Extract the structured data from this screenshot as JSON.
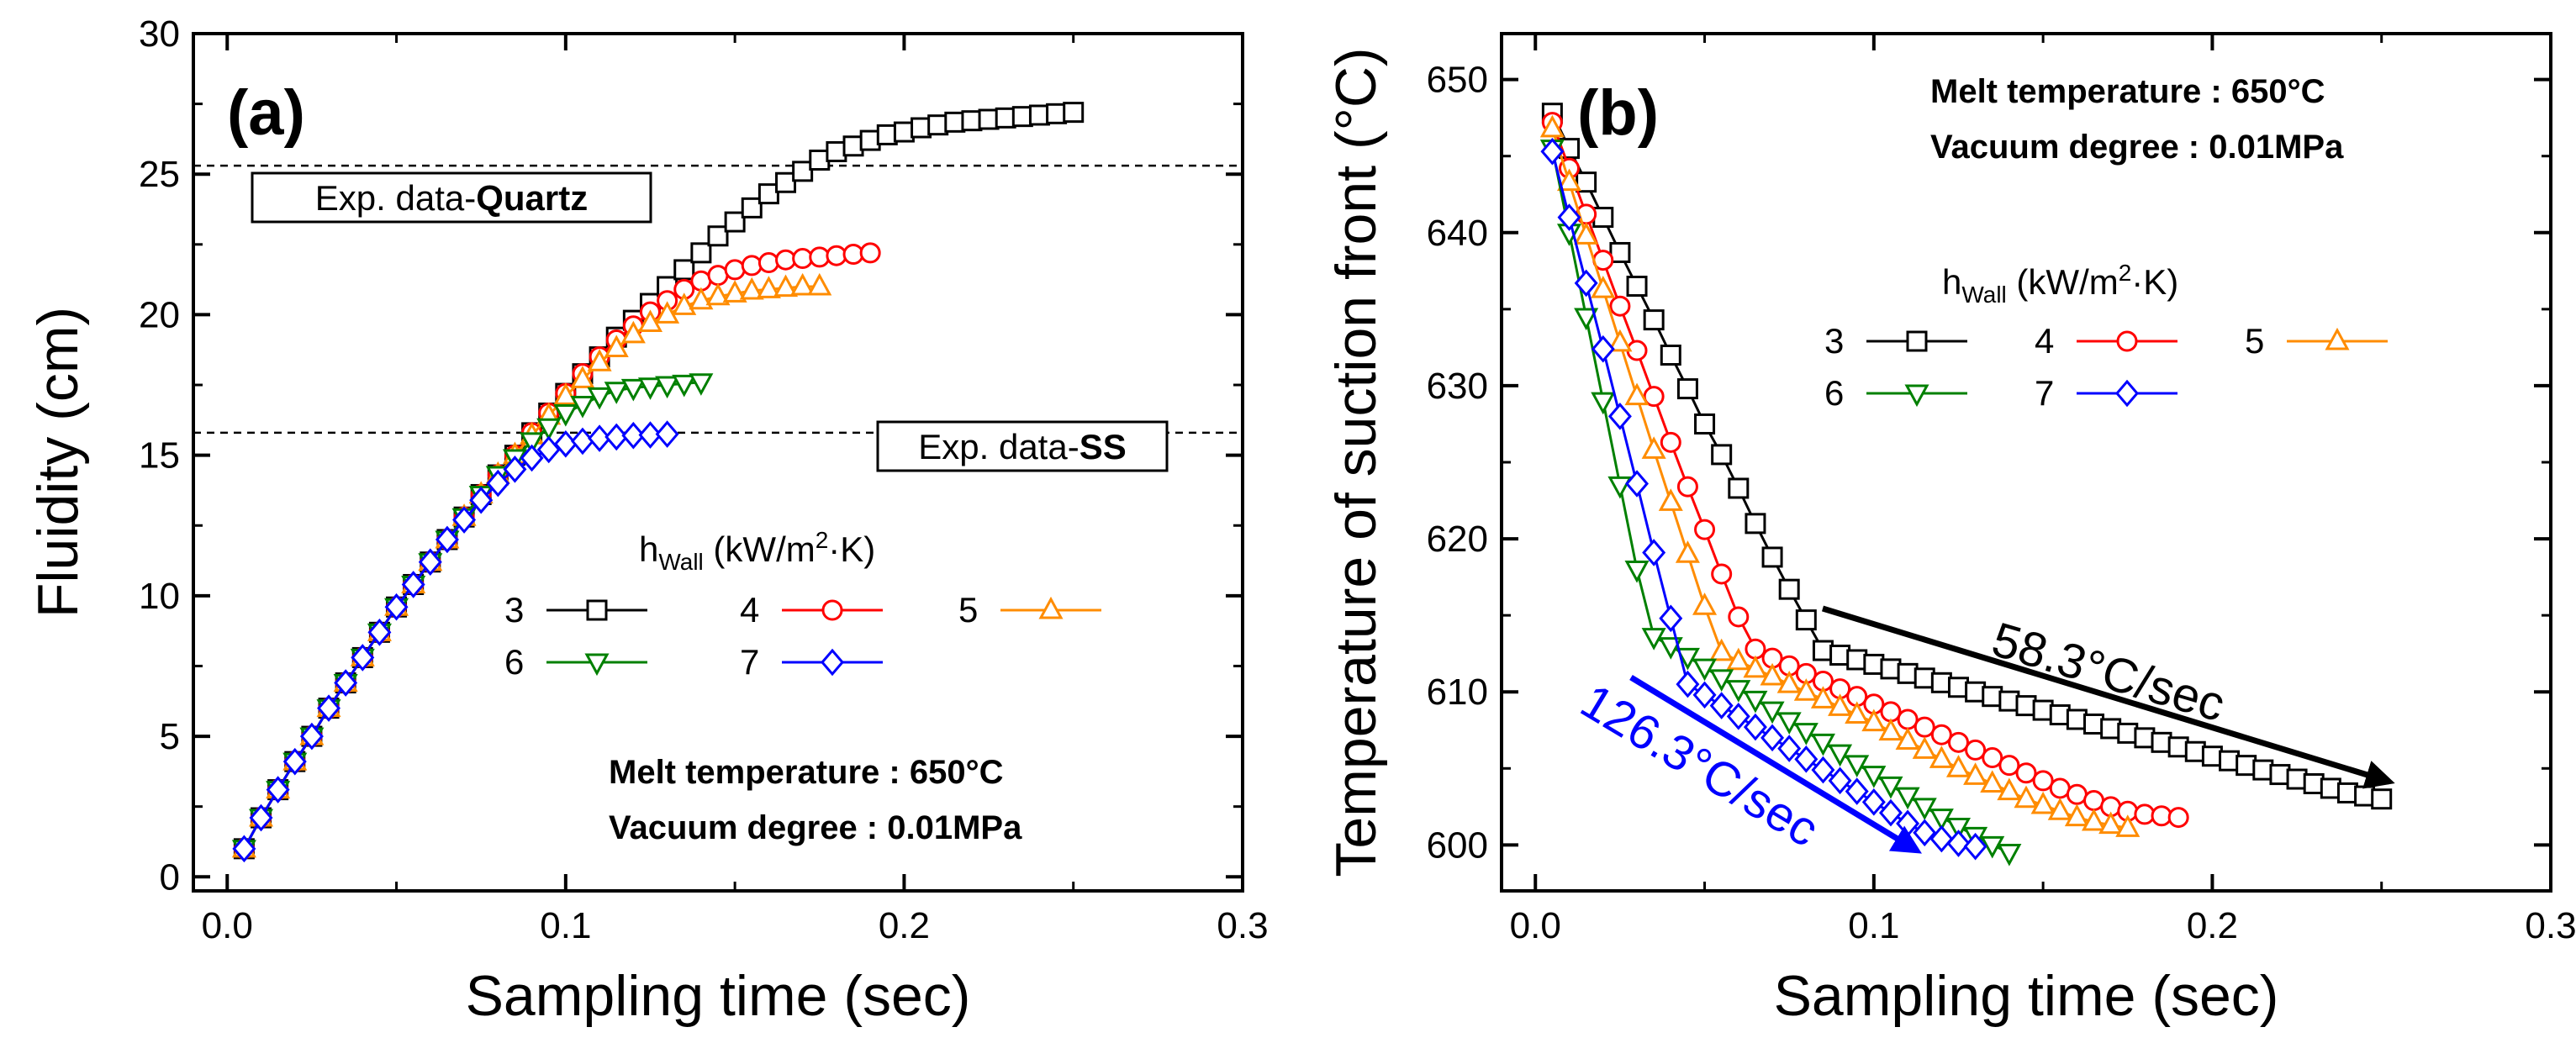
{
  "chart_data": [
    {
      "type": "line",
      "panel_label": "(a)",
      "xlabel": "Sampling time (sec)",
      "ylabel": "Fluidity (cm)",
      "xlim": [
        -0.01,
        0.3
      ],
      "ylim": [
        -0.5,
        30
      ],
      "xticks": [
        0.0,
        0.1,
        0.2,
        0.3
      ],
      "xtick_labels": [
        "0.0",
        "0.1",
        "0.2",
        "0.3"
      ],
      "yticks": [
        0,
        5,
        10,
        15,
        20,
        25,
        30
      ],
      "ytick_labels": [
        "0",
        "5",
        "10",
        "15",
        "20",
        "25",
        "30"
      ],
      "annotations": {
        "line1": "Melt temperature : 650°C",
        "line2": "Vacuum degree : 0.01MPa"
      },
      "reference_lines": [
        {
          "value": 25.3,
          "label_prefix": "Exp. data-",
          "label_bold": "Quartz"
        },
        {
          "value": 15.8,
          "label_prefix": "Exp. data-",
          "label_bold": "SS"
        }
      ],
      "legend": {
        "title": "h",
        "title_sub": "Wall",
        "title_unit_a": " (kW/m",
        "title_sup": "2",
        "title_unit_b": "·K)"
      },
      "series": [
        {
          "name": "3",
          "color": "#000000",
          "marker": "square",
          "x": [
            0.005,
            0.01,
            0.015,
            0.02,
            0.025,
            0.03,
            0.035,
            0.04,
            0.045,
            0.05,
            0.055,
            0.06,
            0.065,
            0.07,
            0.075,
            0.08,
            0.085,
            0.09,
            0.095,
            0.1,
            0.105,
            0.11,
            0.115,
            0.12,
            0.125,
            0.13,
            0.135,
            0.14,
            0.145,
            0.15,
            0.155,
            0.16,
            0.165,
            0.17,
            0.175,
            0.18,
            0.185,
            0.19,
            0.195,
            0.2,
            0.205,
            0.21,
            0.215,
            0.22,
            0.225,
            0.23,
            0.235,
            0.24,
            0.245,
            0.25
          ],
          "y": [
            1.0,
            2.1,
            3.1,
            4.1,
            5.0,
            6.0,
            6.9,
            7.8,
            8.7,
            9.6,
            10.4,
            11.2,
            12.0,
            12.8,
            13.6,
            14.3,
            15.0,
            15.8,
            16.5,
            17.2,
            17.9,
            18.5,
            19.2,
            19.8,
            20.4,
            21.0,
            21.6,
            22.2,
            22.8,
            23.3,
            23.8,
            24.3,
            24.7,
            25.1,
            25.5,
            25.8,
            26.0,
            26.2,
            26.4,
            26.5,
            26.65,
            26.75,
            26.85,
            26.9,
            26.95,
            27.0,
            27.05,
            27.1,
            27.15,
            27.2
          ]
        },
        {
          "name": "4",
          "color": "#ff0000",
          "marker": "circle",
          "x": [
            0.005,
            0.01,
            0.015,
            0.02,
            0.025,
            0.03,
            0.035,
            0.04,
            0.045,
            0.05,
            0.055,
            0.06,
            0.065,
            0.07,
            0.075,
            0.08,
            0.085,
            0.09,
            0.095,
            0.1,
            0.105,
            0.11,
            0.115,
            0.12,
            0.125,
            0.13,
            0.135,
            0.14,
            0.145,
            0.15,
            0.155,
            0.16,
            0.165,
            0.17,
            0.175,
            0.18,
            0.185,
            0.19
          ],
          "y": [
            1.0,
            2.1,
            3.1,
            4.1,
            5.0,
            6.0,
            6.9,
            7.8,
            8.7,
            9.6,
            10.4,
            11.2,
            12.0,
            12.8,
            13.6,
            14.3,
            15.0,
            15.8,
            16.5,
            17.2,
            17.9,
            18.5,
            19.1,
            19.6,
            20.1,
            20.5,
            20.9,
            21.2,
            21.4,
            21.6,
            21.75,
            21.85,
            21.95,
            22.0,
            22.05,
            22.1,
            22.15,
            22.2
          ]
        },
        {
          "name": "5",
          "color": "#ff8c00",
          "marker": "triangle-up",
          "x": [
            0.005,
            0.01,
            0.015,
            0.02,
            0.025,
            0.03,
            0.035,
            0.04,
            0.045,
            0.05,
            0.055,
            0.06,
            0.065,
            0.07,
            0.075,
            0.08,
            0.085,
            0.09,
            0.095,
            0.1,
            0.105,
            0.11,
            0.115,
            0.12,
            0.125,
            0.13,
            0.135,
            0.14,
            0.145,
            0.15,
            0.155,
            0.16,
            0.165,
            0.17,
            0.175
          ],
          "y": [
            1.0,
            2.1,
            3.1,
            4.1,
            5.0,
            6.0,
            6.9,
            7.8,
            8.7,
            9.6,
            10.4,
            11.2,
            12.0,
            12.8,
            13.6,
            14.3,
            15.0,
            15.7,
            16.4,
            17.1,
            17.7,
            18.3,
            18.8,
            19.3,
            19.7,
            20.0,
            20.3,
            20.5,
            20.65,
            20.75,
            20.85,
            20.9,
            20.95,
            21.0,
            21.0
          ]
        },
        {
          "name": "6",
          "color": "#008000",
          "marker": "triangle-down",
          "x": [
            0.005,
            0.01,
            0.015,
            0.02,
            0.025,
            0.03,
            0.035,
            0.04,
            0.045,
            0.05,
            0.055,
            0.06,
            0.065,
            0.07,
            0.075,
            0.08,
            0.085,
            0.09,
            0.095,
            0.1,
            0.105,
            0.11,
            0.115,
            0.12,
            0.125,
            0.13,
            0.135,
            0.14
          ],
          "y": [
            1.0,
            2.1,
            3.1,
            4.1,
            5.0,
            6.0,
            6.9,
            7.8,
            8.7,
            9.6,
            10.4,
            11.2,
            12.0,
            12.8,
            13.6,
            14.3,
            14.9,
            15.5,
            16.0,
            16.5,
            16.8,
            17.1,
            17.3,
            17.4,
            17.45,
            17.5,
            17.55,
            17.6
          ]
        },
        {
          "name": "7",
          "color": "#0000ff",
          "marker": "diamond",
          "x": [
            0.005,
            0.01,
            0.015,
            0.02,
            0.025,
            0.03,
            0.035,
            0.04,
            0.045,
            0.05,
            0.055,
            0.06,
            0.065,
            0.07,
            0.075,
            0.08,
            0.085,
            0.09,
            0.095,
            0.1,
            0.105,
            0.11,
            0.115,
            0.12,
            0.125,
            0.13
          ],
          "y": [
            1.0,
            2.1,
            3.1,
            4.1,
            5.0,
            6.0,
            6.9,
            7.8,
            8.7,
            9.6,
            10.4,
            11.2,
            12.0,
            12.7,
            13.4,
            14.0,
            14.5,
            14.9,
            15.2,
            15.4,
            15.5,
            15.6,
            15.65,
            15.7,
            15.72,
            15.75
          ]
        }
      ]
    },
    {
      "type": "line",
      "panel_label": "(b)",
      "xlabel": "Sampling time (sec)",
      "ylabel": "Temperature of suction front (°C)",
      "xlim": [
        -0.01,
        0.3
      ],
      "ylim": [
        597,
        653
      ],
      "xticks": [
        0.0,
        0.1,
        0.2,
        0.3
      ],
      "xtick_labels": [
        "0.0",
        "0.1",
        "0.2",
        "0.3"
      ],
      "yticks": [
        600,
        610,
        620,
        630,
        640,
        650
      ],
      "ytick_labels": [
        "600",
        "610",
        "620",
        "630",
        "640",
        "650"
      ],
      "annotations": {
        "line1": "Melt temperature : 650°C",
        "line2": "Vacuum degree : 0.01MPa"
      },
      "rates": [
        {
          "label": "58.3°C/sec",
          "color": "#000000"
        },
        {
          "label": "126.3°C/sec",
          "color": "#0000ff"
        }
      ],
      "legend": {
        "title": "h",
        "title_sub": "Wall",
        "title_unit_a": " (kW/m",
        "title_sup": "2",
        "title_unit_b": "·K)"
      },
      "series": [
        {
          "name": "3",
          "color": "#000000",
          "marker": "square",
          "x": [
            0.005,
            0.01,
            0.015,
            0.02,
            0.025,
            0.03,
            0.035,
            0.04,
            0.045,
            0.05,
            0.055,
            0.06,
            0.065,
            0.07,
            0.075,
            0.08,
            0.085,
            0.09,
            0.095,
            0.1,
            0.105,
            0.11,
            0.115,
            0.12,
            0.125,
            0.13,
            0.135,
            0.14,
            0.145,
            0.15,
            0.155,
            0.16,
            0.165,
            0.17,
            0.175,
            0.18,
            0.185,
            0.19,
            0.195,
            0.2,
            0.205,
            0.21,
            0.215,
            0.22,
            0.225,
            0.23,
            0.235,
            0.24,
            0.245,
            0.25
          ],
          "y": [
            647.8,
            645.5,
            643.3,
            641.0,
            638.7,
            636.5,
            634.3,
            632.0,
            629.8,
            627.5,
            625.5,
            623.3,
            621.0,
            618.8,
            616.7,
            614.7,
            612.7,
            612.4,
            612.1,
            611.8,
            611.5,
            611.2,
            610.9,
            610.6,
            610.3,
            610.0,
            609.7,
            609.4,
            609.1,
            608.8,
            608.5,
            608.2,
            607.9,
            607.6,
            607.3,
            607.0,
            606.7,
            606.4,
            606.1,
            605.8,
            605.5,
            605.2,
            604.9,
            604.6,
            604.3,
            604.0,
            603.7,
            603.4,
            603.2,
            603.0
          ]
        },
        {
          "name": "4",
          "color": "#ff0000",
          "marker": "circle",
          "x": [
            0.005,
            0.01,
            0.015,
            0.02,
            0.025,
            0.03,
            0.035,
            0.04,
            0.045,
            0.05,
            0.055,
            0.06,
            0.065,
            0.07,
            0.075,
            0.08,
            0.085,
            0.09,
            0.095,
            0.1,
            0.105,
            0.11,
            0.115,
            0.12,
            0.125,
            0.13,
            0.135,
            0.14,
            0.145,
            0.15,
            0.155,
            0.16,
            0.165,
            0.17,
            0.175,
            0.18,
            0.185,
            0.19
          ],
          "y": [
            647.2,
            644.2,
            641.2,
            638.2,
            635.2,
            632.3,
            629.3,
            626.3,
            623.4,
            620.6,
            617.7,
            614.9,
            612.8,
            612.2,
            611.7,
            611.2,
            610.7,
            610.2,
            609.7,
            609.2,
            608.7,
            608.2,
            607.7,
            607.2,
            606.7,
            606.2,
            605.7,
            605.2,
            604.7,
            604.2,
            603.7,
            603.3,
            602.9,
            602.5,
            602.2,
            602.0,
            601.9,
            601.8
          ]
        },
        {
          "name": "5",
          "color": "#ff8c00",
          "marker": "triangle-up",
          "x": [
            0.005,
            0.01,
            0.015,
            0.02,
            0.025,
            0.03,
            0.035,
            0.04,
            0.045,
            0.05,
            0.055,
            0.06,
            0.065,
            0.07,
            0.075,
            0.08,
            0.085,
            0.09,
            0.095,
            0.1,
            0.105,
            0.11,
            0.115,
            0.12,
            0.125,
            0.13,
            0.135,
            0.14,
            0.145,
            0.15,
            0.155,
            0.16,
            0.165,
            0.17,
            0.175
          ],
          "y": [
            646.8,
            643.3,
            639.8,
            636.3,
            632.8,
            629.3,
            625.8,
            622.4,
            619.0,
            615.6,
            612.6,
            612.0,
            611.5,
            611.0,
            610.5,
            610.0,
            609.5,
            609.0,
            608.5,
            608.0,
            607.4,
            606.8,
            606.2,
            605.6,
            605.0,
            604.5,
            604.0,
            603.5,
            603.0,
            602.6,
            602.2,
            601.8,
            601.5,
            601.3,
            601.1
          ]
        },
        {
          "name": "6",
          "color": "#008000",
          "marker": "triangle-down",
          "x": [
            0.005,
            0.01,
            0.015,
            0.02,
            0.025,
            0.03,
            0.035,
            0.04,
            0.045,
            0.05,
            0.055,
            0.06,
            0.065,
            0.07,
            0.075,
            0.08,
            0.085,
            0.09,
            0.095,
            0.1,
            0.105,
            0.11,
            0.115,
            0.12,
            0.125,
            0.13,
            0.135,
            0.14
          ],
          "y": [
            645.5,
            640.0,
            634.5,
            629.0,
            623.5,
            618.0,
            613.6,
            613.0,
            612.3,
            611.6,
            610.9,
            610.2,
            609.5,
            608.8,
            608.1,
            607.4,
            606.7,
            606.0,
            605.3,
            604.6,
            603.9,
            603.2,
            602.5,
            601.8,
            601.2,
            600.6,
            600.0,
            599.5
          ]
        },
        {
          "name": "7",
          "color": "#0000ff",
          "marker": "diamond",
          "x": [
            0.005,
            0.01,
            0.015,
            0.02,
            0.025,
            0.03,
            0.035,
            0.04,
            0.045,
            0.05,
            0.055,
            0.06,
            0.065,
            0.07,
            0.075,
            0.08,
            0.085,
            0.09,
            0.095,
            0.1,
            0.105,
            0.11,
            0.115,
            0.12,
            0.125,
            0.13
          ],
          "y": [
            645.3,
            641.0,
            636.7,
            632.4,
            628.0,
            623.6,
            619.1,
            614.8,
            610.5,
            609.8,
            609.1,
            608.4,
            607.7,
            607.0,
            606.3,
            605.6,
            604.9,
            604.2,
            603.5,
            602.8,
            602.1,
            601.4,
            600.8,
            600.4,
            600.1,
            599.9
          ]
        }
      ]
    }
  ]
}
